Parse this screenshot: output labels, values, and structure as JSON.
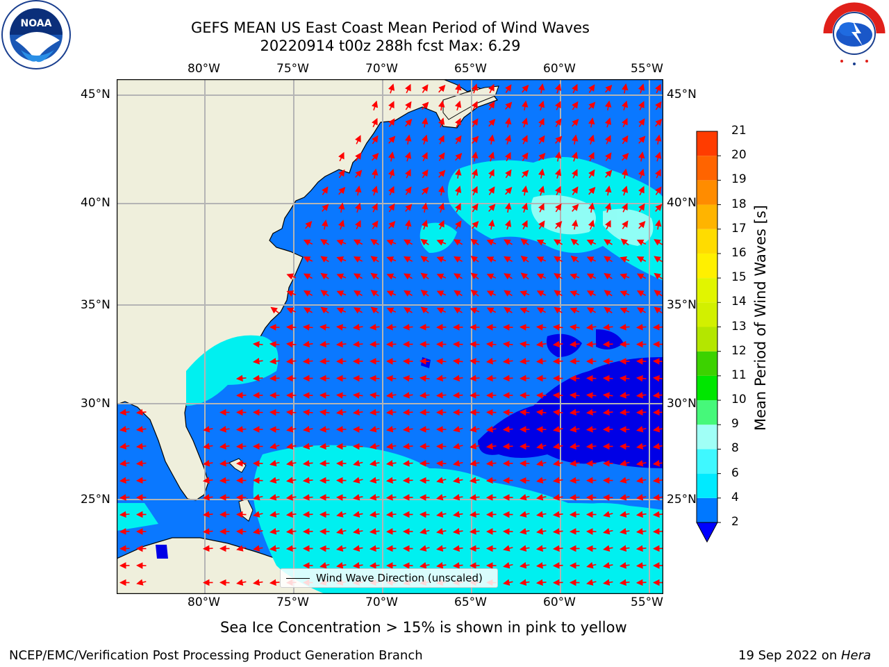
{
  "title": {
    "line1": "GEFS MEAN US East Coast Mean Period of Wind Waves",
    "line2": "20220914 t00z 288h fcst   Max: 6.29"
  },
  "logos": {
    "left": {
      "name": "NOAA",
      "ring_text": "NATIONAL OCEANIC AND ATMOSPHERIC ADMINISTRATION • U.S. DEPARTMENT OF COMMERCE"
    },
    "right": {
      "name": "NATIONAL WEATHER SERVICE"
    }
  },
  "map": {
    "lon_labels": [
      "80°W",
      "75°W",
      "70°W",
      "65°W",
      "60°W",
      "55°W"
    ],
    "lat_labels": [
      "45°N",
      "40°N",
      "35°N",
      "30°N",
      "25°N"
    ],
    "colors": {
      "land": "#efefdc",
      "ocean_low": "#0a78ff",
      "ocean_mid": "#00f0f0",
      "ocean_high": "#a0fff6",
      "ocean_min": "#0000e6",
      "arrow": "#ff0000",
      "grid": "#b4b4b4"
    }
  },
  "legend": {
    "label": "Wind Wave Direction (unscaled)"
  },
  "colorbar": {
    "label": "Mean Period of Wind Waves [s]",
    "ticks": [
      "2",
      "4",
      "6",
      "8",
      "9",
      "10",
      "11",
      "12",
      "13",
      "14",
      "15",
      "16",
      "17",
      "18",
      "19",
      "20",
      "21"
    ],
    "colors": [
      "#0078ff",
      "#00eaff",
      "#3ff8ff",
      "#a0fff6",
      "#46f87a",
      "#00e600",
      "#3cd200",
      "#b4e600",
      "#d2f000",
      "#e1f500",
      "#fff000",
      "#ffdc00",
      "#ffb400",
      "#ff8c00",
      "#ff6400",
      "#ff3c00",
      "#ff0000"
    ],
    "under_color": "#0000ff"
  },
  "footer": {
    "note": "Sea Ice Concentration > 15% is shown in pink to yellow",
    "left": "NCEP/EMC/Verification Post Processing Product Generation Branch",
    "right_prefix": "19 Sep 2022 on ",
    "right_host": "Hera"
  }
}
